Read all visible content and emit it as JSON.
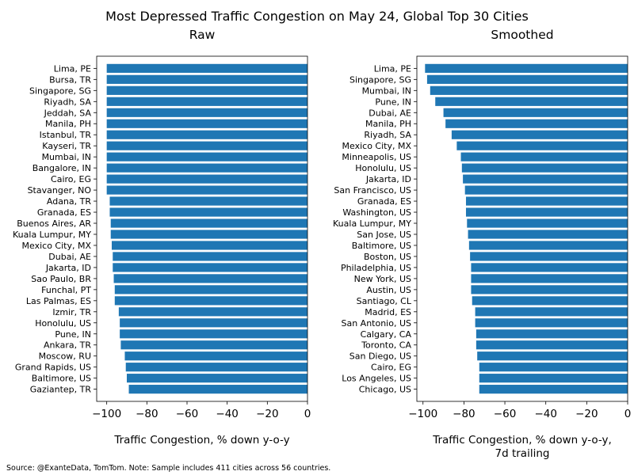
{
  "suptitle": "Most Depressed Traffic Congestion on May 24, Global Top 30 Cities",
  "footnote": "Source: @ExanteData, TomTom.   Note: Sample includes 411 cities across 56 countries.",
  "colors": {
    "bar": "#1f77b4"
  },
  "chart_data": [
    {
      "type": "bar",
      "orientation": "horizontal",
      "title": "Raw",
      "xlabel": [
        "Traffic Congestion, % down y-o-y"
      ],
      "ylabel": "",
      "xlim": [
        -105,
        0
      ],
      "xticks": [
        -100,
        -80,
        -60,
        -40,
        -20,
        0
      ],
      "xtick_labels": [
        "−100",
        "−80",
        "−60",
        "−40",
        "−20",
        "0"
      ],
      "categories": [
        "Lima, PE",
        "Bursa, TR",
        "Singapore, SG",
        "Riyadh, SA",
        "Jeddah, SA",
        "Manila, PH",
        "Istanbul, TR",
        "Kayseri, TR",
        "Mumbai, IN",
        "Bangalore, IN",
        "Cairo, EG",
        "Stavanger, NO",
        "Adana, TR",
        "Granada, ES",
        "Buenos Aires, AR",
        "Kuala Lumpur, MY",
        "Mexico City, MX",
        "Dubai, AE",
        "Jakarta, ID",
        "Sao Paulo, BR",
        "Funchal, PT",
        "Las Palmas, ES",
        "Izmir, TR",
        "Honolulu, US",
        "Pune, IN",
        "Ankara, TR",
        "Moscow, RU",
        "Grand Rapids, US",
        "Baltimore, US",
        "Gaziantep, TR"
      ],
      "values": [
        -100,
        -100,
        -100,
        -100,
        -100,
        -100,
        -100,
        -100,
        -100,
        -100,
        -100,
        -100,
        -98.5,
        -98.5,
        -98,
        -98,
        -97.5,
        -97,
        -97,
        -96.5,
        -96,
        -96,
        -94,
        -93.5,
        -93.5,
        -93,
        -91,
        -90.5,
        -90,
        -89
      ],
      "grid": false
    },
    {
      "type": "bar",
      "orientation": "horizontal",
      "title": "Smoothed",
      "xlabel": [
        "Traffic Congestion, % down y-o-y,",
        "7d trailing"
      ],
      "ylabel": "",
      "xlim": [
        -103,
        0
      ],
      "xticks": [
        -100,
        -80,
        -60,
        -40,
        -20,
        0
      ],
      "xtick_labels": [
        "−100",
        "−80",
        "−60",
        "−40",
        "−20",
        "0"
      ],
      "categories": [
        "Lima, PE",
        "Singapore, SG",
        "Mumbai, IN",
        "Pune, IN",
        "Dubai, AE",
        "Manila, PH",
        "Riyadh, SA",
        "Mexico City, MX",
        "Minneapolis, US",
        "Honolulu, US",
        "Jakarta, ID",
        "San Francisco, US",
        "Granada, ES",
        "Washington, US",
        "Kuala Lumpur, MY",
        "San Jose, US",
        "Baltimore, US",
        "Boston, US",
        "Philadelphia, US",
        "New York, US",
        "Austin, US",
        "Santiago, CL",
        "Madrid, ES",
        "San Antonio, US",
        "Calgary, CA",
        "Toronto, CA",
        "San Diego, US",
        "Cairo, EG",
        "Los Angeles, US",
        "Chicago, US"
      ],
      "values": [
        -99,
        -98,
        -96.5,
        -94,
        -90,
        -89,
        -86,
        -83.5,
        -81.5,
        -81,
        -80.5,
        -79.5,
        -79,
        -79,
        -78.5,
        -78,
        -77.5,
        -77,
        -76.5,
        -76.5,
        -76.5,
        -76,
        -74.5,
        -74.5,
        -74,
        -74,
        -73.5,
        -72.5,
        -72.5,
        -72.5
      ],
      "grid": false
    }
  ]
}
